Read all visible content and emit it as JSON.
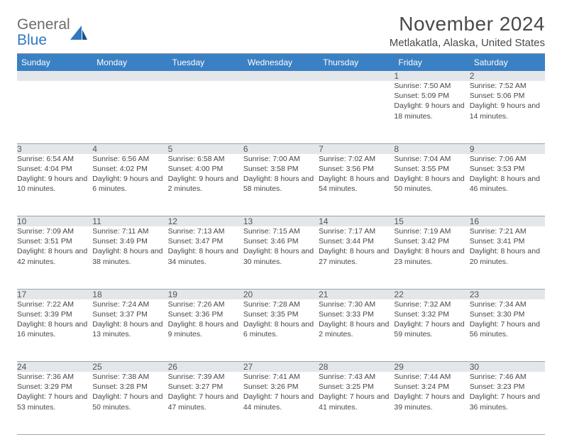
{
  "brand": {
    "general": "General",
    "blue": "Blue"
  },
  "title": "November 2024",
  "location": "Metlakatla, Alaska, United States",
  "colors": {
    "header_bg": "#3a80c4",
    "header_fg": "#ffffff",
    "daynum_bg": "#e4e7ea",
    "rule": "#9aa4ad",
    "brand_blue": "#2f78bf",
    "brand_gray": "#6b6b6b",
    "text": "#474747"
  },
  "days_of_week": [
    "Sunday",
    "Monday",
    "Tuesday",
    "Wednesday",
    "Thursday",
    "Friday",
    "Saturday"
  ],
  "weeks": [
    [
      null,
      null,
      null,
      null,
      null,
      {
        "n": "1",
        "sunrise": "7:50 AM",
        "sunset": "5:09 PM",
        "daylight": "9 hours and 18 minutes."
      },
      {
        "n": "2",
        "sunrise": "7:52 AM",
        "sunset": "5:06 PM",
        "daylight": "9 hours and 14 minutes."
      }
    ],
    [
      {
        "n": "3",
        "sunrise": "6:54 AM",
        "sunset": "4:04 PM",
        "daylight": "9 hours and 10 minutes."
      },
      {
        "n": "4",
        "sunrise": "6:56 AM",
        "sunset": "4:02 PM",
        "daylight": "9 hours and 6 minutes."
      },
      {
        "n": "5",
        "sunrise": "6:58 AM",
        "sunset": "4:00 PM",
        "daylight": "9 hours and 2 minutes."
      },
      {
        "n": "6",
        "sunrise": "7:00 AM",
        "sunset": "3:58 PM",
        "daylight": "8 hours and 58 minutes."
      },
      {
        "n": "7",
        "sunrise": "7:02 AM",
        "sunset": "3:56 PM",
        "daylight": "8 hours and 54 minutes."
      },
      {
        "n": "8",
        "sunrise": "7:04 AM",
        "sunset": "3:55 PM",
        "daylight": "8 hours and 50 minutes."
      },
      {
        "n": "9",
        "sunrise": "7:06 AM",
        "sunset": "3:53 PM",
        "daylight": "8 hours and 46 minutes."
      }
    ],
    [
      {
        "n": "10",
        "sunrise": "7:09 AM",
        "sunset": "3:51 PM",
        "daylight": "8 hours and 42 minutes."
      },
      {
        "n": "11",
        "sunrise": "7:11 AM",
        "sunset": "3:49 PM",
        "daylight": "8 hours and 38 minutes."
      },
      {
        "n": "12",
        "sunrise": "7:13 AM",
        "sunset": "3:47 PM",
        "daylight": "8 hours and 34 minutes."
      },
      {
        "n": "13",
        "sunrise": "7:15 AM",
        "sunset": "3:46 PM",
        "daylight": "8 hours and 30 minutes."
      },
      {
        "n": "14",
        "sunrise": "7:17 AM",
        "sunset": "3:44 PM",
        "daylight": "8 hours and 27 minutes."
      },
      {
        "n": "15",
        "sunrise": "7:19 AM",
        "sunset": "3:42 PM",
        "daylight": "8 hours and 23 minutes."
      },
      {
        "n": "16",
        "sunrise": "7:21 AM",
        "sunset": "3:41 PM",
        "daylight": "8 hours and 20 minutes."
      }
    ],
    [
      {
        "n": "17",
        "sunrise": "7:22 AM",
        "sunset": "3:39 PM",
        "daylight": "8 hours and 16 minutes."
      },
      {
        "n": "18",
        "sunrise": "7:24 AM",
        "sunset": "3:37 PM",
        "daylight": "8 hours and 13 minutes."
      },
      {
        "n": "19",
        "sunrise": "7:26 AM",
        "sunset": "3:36 PM",
        "daylight": "8 hours and 9 minutes."
      },
      {
        "n": "20",
        "sunrise": "7:28 AM",
        "sunset": "3:35 PM",
        "daylight": "8 hours and 6 minutes."
      },
      {
        "n": "21",
        "sunrise": "7:30 AM",
        "sunset": "3:33 PM",
        "daylight": "8 hours and 2 minutes."
      },
      {
        "n": "22",
        "sunrise": "7:32 AM",
        "sunset": "3:32 PM",
        "daylight": "7 hours and 59 minutes."
      },
      {
        "n": "23",
        "sunrise": "7:34 AM",
        "sunset": "3:30 PM",
        "daylight": "7 hours and 56 minutes."
      }
    ],
    [
      {
        "n": "24",
        "sunrise": "7:36 AM",
        "sunset": "3:29 PM",
        "daylight": "7 hours and 53 minutes."
      },
      {
        "n": "25",
        "sunrise": "7:38 AM",
        "sunset": "3:28 PM",
        "daylight": "7 hours and 50 minutes."
      },
      {
        "n": "26",
        "sunrise": "7:39 AM",
        "sunset": "3:27 PM",
        "daylight": "7 hours and 47 minutes."
      },
      {
        "n": "27",
        "sunrise": "7:41 AM",
        "sunset": "3:26 PM",
        "daylight": "7 hours and 44 minutes."
      },
      {
        "n": "28",
        "sunrise": "7:43 AM",
        "sunset": "3:25 PM",
        "daylight": "7 hours and 41 minutes."
      },
      {
        "n": "29",
        "sunrise": "7:44 AM",
        "sunset": "3:24 PM",
        "daylight": "7 hours and 39 minutes."
      },
      {
        "n": "30",
        "sunrise": "7:46 AM",
        "sunset": "3:23 PM",
        "daylight": "7 hours and 36 minutes."
      }
    ]
  ],
  "labels": {
    "sunrise": "Sunrise:",
    "sunset": "Sunset:",
    "daylight": "Daylight:"
  }
}
